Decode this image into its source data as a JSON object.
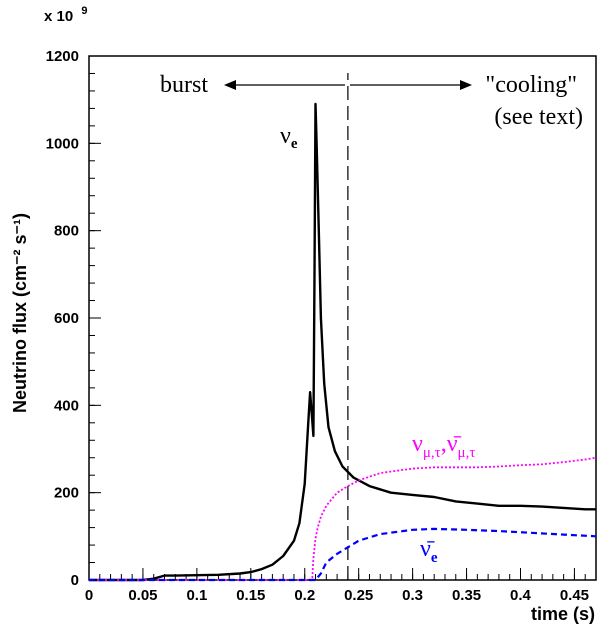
{
  "chart_data": {
    "type": "line",
    "title": "",
    "xlabel": "time (s)",
    "ylabel": "Neutrino flux (cm⁻² s⁻¹)",
    "y_multiplier": "x 10",
    "y_multiplier_exponent": "9",
    "xlim": [
      0,
      0.47
    ],
    "ylim": [
      0,
      1200
    ],
    "x_ticks": [
      0,
      0.05,
      0.1,
      0.15,
      0.2,
      0.25,
      0.3,
      0.35,
      0.4,
      0.45
    ],
    "x_tick_labels": [
      "0",
      "0.05",
      "0.1",
      "0.15",
      "0.2",
      "0.25",
      "0.3",
      "0.35",
      "0.4",
      "0.45"
    ],
    "y_ticks": [
      0,
      200,
      400,
      600,
      800,
      1000,
      1200
    ],
    "y_tick_labels": [
      "0",
      "200",
      "400",
      "600",
      "800",
      "1000",
      "1200"
    ],
    "grid": false,
    "divider_x": 0.24,
    "annotations": {
      "burst": "burst",
      "cooling": "\"cooling\"",
      "see_text": "(see text)"
    },
    "series": [
      {
        "name": "νe",
        "color": "#000000",
        "style": "solid",
        "x": [
          0,
          0.05,
          0.06,
          0.07,
          0.08,
          0.1,
          0.12,
          0.14,
          0.15,
          0.16,
          0.17,
          0.18,
          0.19,
          0.195,
          0.2,
          0.203,
          0.205,
          0.2065,
          0.208,
          0.209,
          0.21,
          0.211,
          0.213,
          0.215,
          0.218,
          0.222,
          0.228,
          0.235,
          0.245,
          0.26,
          0.28,
          0.3,
          0.32,
          0.34,
          0.36,
          0.38,
          0.4,
          0.42,
          0.44,
          0.46,
          0.47
        ],
        "y": [
          0,
          0,
          3,
          10,
          10,
          11,
          12,
          15,
          18,
          25,
          35,
          55,
          90,
          130,
          220,
          350,
          430,
          380,
          330,
          700,
          1090,
          1000,
          800,
          600,
          450,
          350,
          295,
          260,
          235,
          215,
          200,
          195,
          190,
          180,
          175,
          170,
          170,
          168,
          165,
          162,
          162
        ]
      },
      {
        "name": "νμ,τ,ν̄μ,τ",
        "color": "#ff00ff",
        "style": "dotted",
        "x": [
          0,
          0.205,
          0.207,
          0.208,
          0.21,
          0.212,
          0.215,
          0.22,
          0.225,
          0.23,
          0.24,
          0.25,
          0.27,
          0.3,
          0.32,
          0.34,
          0.36,
          0.38,
          0.4,
          0.42,
          0.44,
          0.46,
          0.47
        ],
        "y": [
          0,
          0,
          5,
          50,
          95,
          120,
          145,
          170,
          185,
          200,
          215,
          228,
          245,
          255,
          258,
          258,
          258,
          260,
          263,
          265,
          270,
          276,
          280
        ]
      },
      {
        "name": "ν̄e",
        "color": "#0000ff",
        "style": "dashed",
        "x": [
          0,
          0.21,
          0.215,
          0.22,
          0.23,
          0.24,
          0.25,
          0.27,
          0.3,
          0.32,
          0.35,
          0.38,
          0.41,
          0.44,
          0.47
        ],
        "y": [
          0,
          0,
          15,
          40,
          60,
          75,
          90,
          105,
          115,
          117,
          115,
          112,
          108,
          104,
          100
        ]
      }
    ],
    "series_labels": {
      "nue": {
        "main": "ν",
        "sub": "e"
      },
      "numu": {
        "main1": "ν",
        "sub1": "μ,τ",
        "sep": ",",
        "main2": "ν̄",
        "sub2": "μ,τ"
      },
      "nuebar": {
        "main": "ν̄",
        "sub": "e"
      }
    }
  }
}
